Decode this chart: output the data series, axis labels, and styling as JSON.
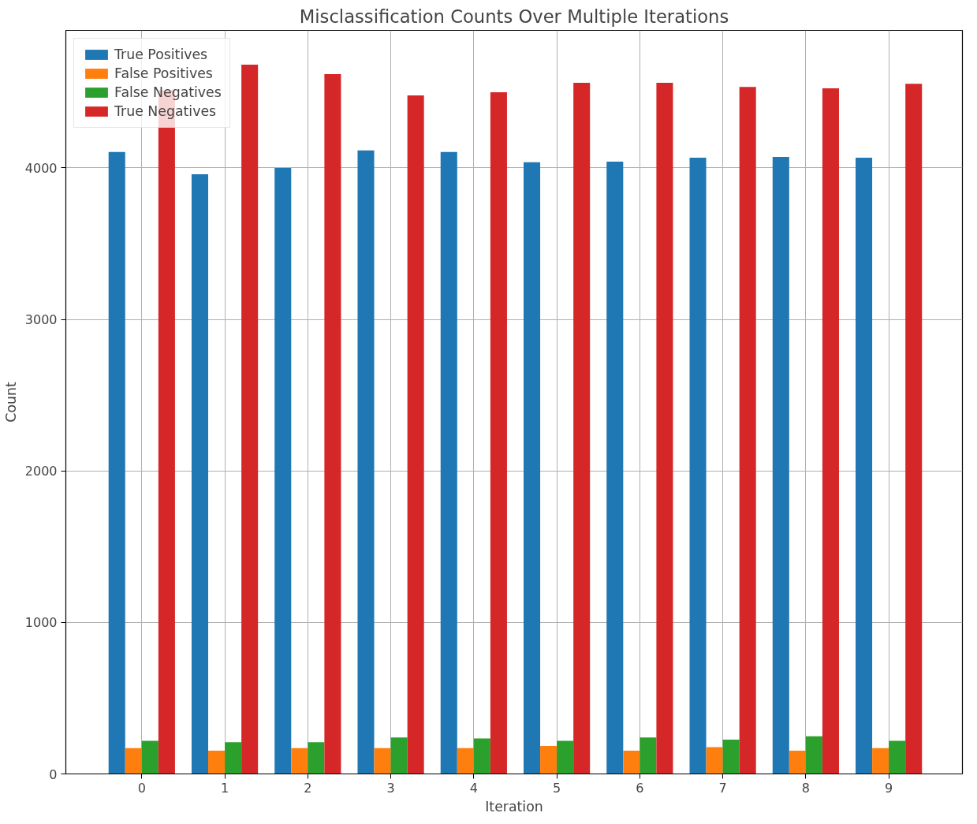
{
  "chart_data": {
    "type": "bar",
    "title": "Misclassification Counts Over Multiple Iterations",
    "xlabel": "Iteration",
    "ylabel": "Count",
    "x": [
      0,
      1,
      2,
      3,
      4,
      5,
      6,
      7,
      8,
      9
    ],
    "series": [
      {
        "name": "True Positives",
        "color": "#1f77b4",
        "values": [
          4105,
          3958,
          4000,
          4115,
          4105,
          4037,
          4042,
          4068,
          4073,
          4068
        ]
      },
      {
        "name": "False Positives",
        "color": "#ff7f0e",
        "values": [
          170,
          154,
          170,
          170,
          170,
          185,
          154,
          177,
          154,
          170
        ]
      },
      {
        "name": "False Negatives",
        "color": "#2ca02c",
        "values": [
          218,
          210,
          210,
          241,
          234,
          218,
          241,
          226,
          249,
          218
        ]
      },
      {
        "name": "True Negatives",
        "color": "#d62728",
        "values": [
          4514,
          4682,
          4619,
          4478,
          4499,
          4562,
          4562,
          4535,
          4525,
          4556
        ]
      }
    ],
    "xlim": [
      -0.915,
      9.887
    ],
    "xticks": [
      0,
      1,
      2,
      3,
      4,
      5,
      6,
      7,
      8,
      9
    ],
    "ylim": [
      0,
      4908
    ],
    "yticks": [
      0,
      1000,
      2000,
      3000,
      4000
    ],
    "grid": true,
    "legend": "top left"
  }
}
